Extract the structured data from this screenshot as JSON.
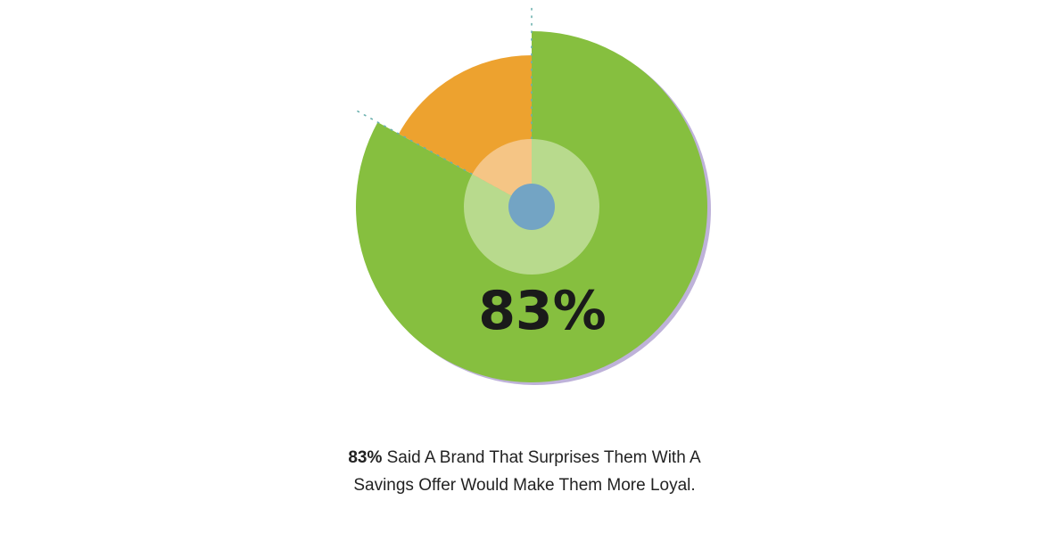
{
  "chart_data": {
    "type": "pie",
    "slices": [
      {
        "label": "",
        "value": 83,
        "color": "#86bf3f"
      },
      {
        "label": "",
        "value": 17,
        "color": "#eda22f"
      }
    ],
    "center_label": "83%",
    "title": "",
    "caption": {
      "highlight": "83%",
      "line1_rest": " Said A Brand That Surprises Them With A",
      "line2": "Savings Offer Would Make Them More Loyal."
    },
    "inner_ring_color": "#b8da8d",
    "inner_ring_secondary_color": "#f5c585",
    "hub_color": "#73a4c4",
    "shadow_color": "#a898cc"
  }
}
